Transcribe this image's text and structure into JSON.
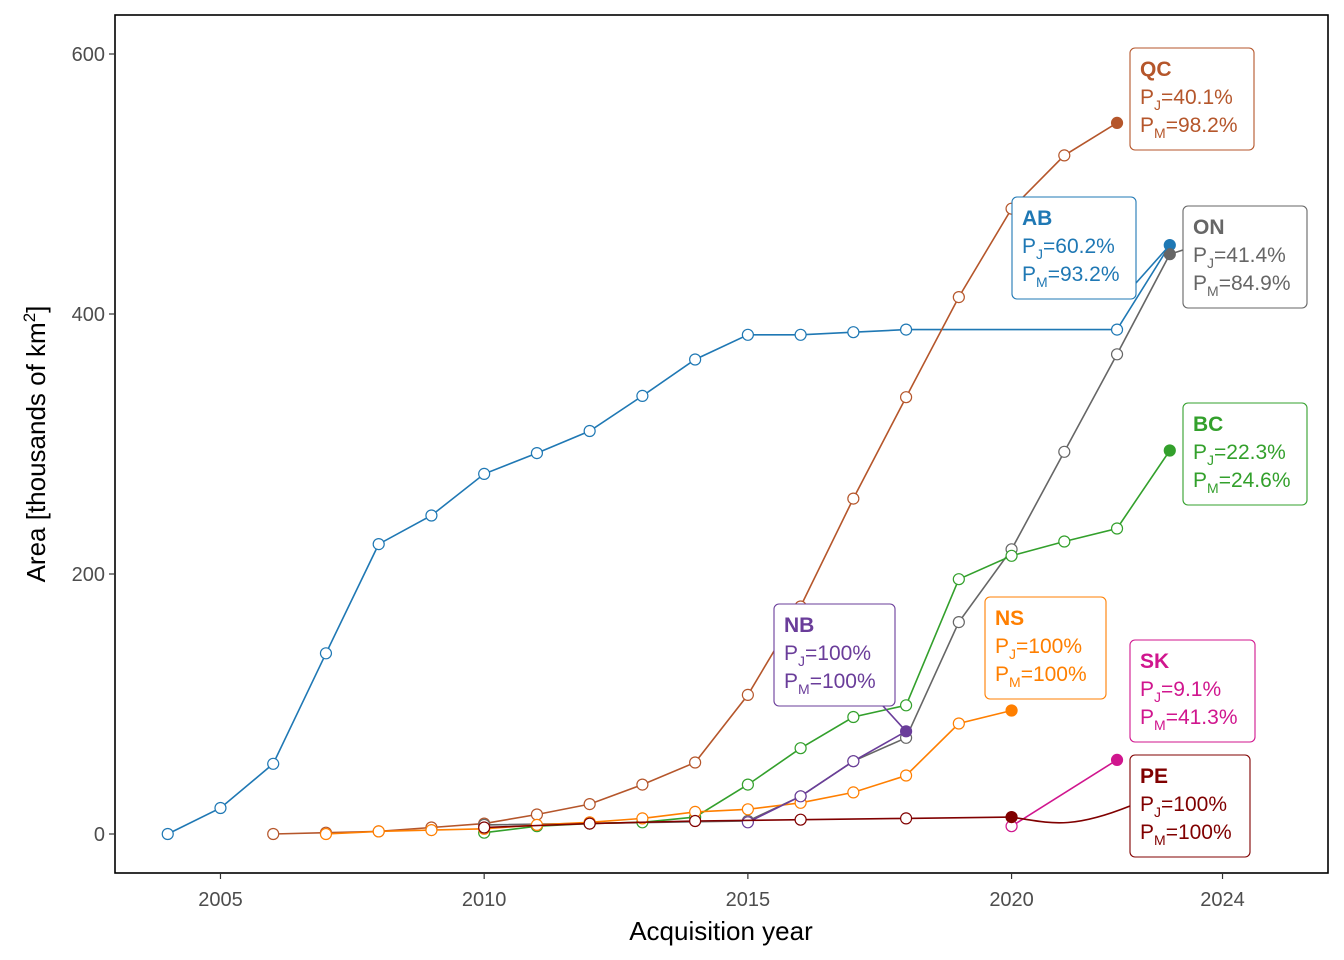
{
  "chart_data": {
    "type": "line",
    "xlabel": "Acquisition year",
    "ylabel_main": "Area [thousands of km",
    "ylabel_sup": "2",
    "ylabel_end": "]",
    "xlim": [
      2003,
      2026
    ],
    "ylim": [
      -30,
      630
    ],
    "x_ticks": [
      2005,
      2010,
      2015,
      2020,
      2024
    ],
    "y_ticks": [
      0,
      200,
      400,
      600
    ],
    "grid": false,
    "series": [
      {
        "name": "AB",
        "color": "#1f78b4",
        "x": [
          2004,
          2005,
          2006,
          2007,
          2008,
          2009,
          2010,
          2011,
          2012,
          2013,
          2014,
          2015,
          2016,
          2017,
          2018,
          2022,
          2023
        ],
        "y": [
          0,
          20,
          54,
          139,
          223,
          245,
          277,
          293,
          310,
          337,
          365,
          384,
          384,
          386,
          388,
          388,
          453
        ],
        "label": {
          "code": "AB",
          "pj": "=60.2%",
          "pm": "=93.2%"
        }
      },
      {
        "name": "QC",
        "color": "#b5562b",
        "x": [
          2006,
          2007,
          2008,
          2009,
          2010,
          2011,
          2012,
          2013,
          2014,
          2015,
          2016,
          2017,
          2018,
          2019,
          2020,
          2021,
          2022
        ],
        "y": [
          0,
          1,
          2,
          5,
          8,
          15,
          23,
          38,
          55,
          107,
          175,
          258,
          336,
          413,
          481,
          522,
          547
        ],
        "label": {
          "code": "QC",
          "pj": "=40.1%",
          "pm": "=98.2%"
        }
      },
      {
        "name": "ON",
        "color": "#666666",
        "x": [
          2010,
          2015,
          2016,
          2017,
          2018,
          2019,
          2020,
          2021,
          2022,
          2023
        ],
        "y": [
          7,
          10,
          29,
          56,
          74,
          163,
          219,
          294,
          369,
          446
        ],
        "label": {
          "code": "ON",
          "pj": "=41.4%",
          "pm": "=84.9%"
        }
      },
      {
        "name": "BC",
        "color": "#33a02c",
        "x": [
          2010,
          2011,
          2012,
          2013,
          2014,
          2015,
          2016,
          2017,
          2018,
          2019,
          2020,
          2021,
          2022,
          2023
        ],
        "y": [
          1,
          6,
          8,
          9,
          13,
          38,
          66,
          90,
          99,
          196,
          214,
          225,
          235,
          295
        ],
        "label": {
          "code": "BC",
          "pj": "=22.3%",
          "pm": "=24.6%"
        }
      },
      {
        "name": "NS",
        "color": "#ff7f00",
        "x": [
          2007,
          2008,
          2009,
          2010,
          2011,
          2012,
          2013,
          2014,
          2015,
          2016,
          2017,
          2018,
          2019,
          2020
        ],
        "y": [
          0,
          2,
          3,
          4,
          7,
          9,
          12,
          17,
          19,
          24,
          32,
          45,
          85,
          95
        ],
        "label": {
          "code": "NS",
          "pj": "=100%",
          "pm": "=100%"
        }
      },
      {
        "name": "NB",
        "color": "#6a3d9a",
        "x": [
          2015,
          2016,
          2017,
          2018
        ],
        "y": [
          9,
          29,
          56,
          79
        ],
        "label": {
          "code": "NB",
          "pj": "=100%",
          "pm": "=100%"
        }
      },
      {
        "name": "SK",
        "color": "#d0168e",
        "x": [
          2020,
          2022
        ],
        "y": [
          6,
          57
        ],
        "label": {
          "code": "SK",
          "pj": "=9.1%",
          "pm": "=41.3%"
        }
      },
      {
        "name": "PE",
        "color": "#800000",
        "x": [
          2010,
          2012,
          2014,
          2016,
          2018,
          2020
        ],
        "y": [
          5,
          8,
          10,
          11,
          12,
          13
        ],
        "label": {
          "code": "PE",
          "pj": "=100%",
          "pm": "=100%"
        }
      }
    ]
  }
}
